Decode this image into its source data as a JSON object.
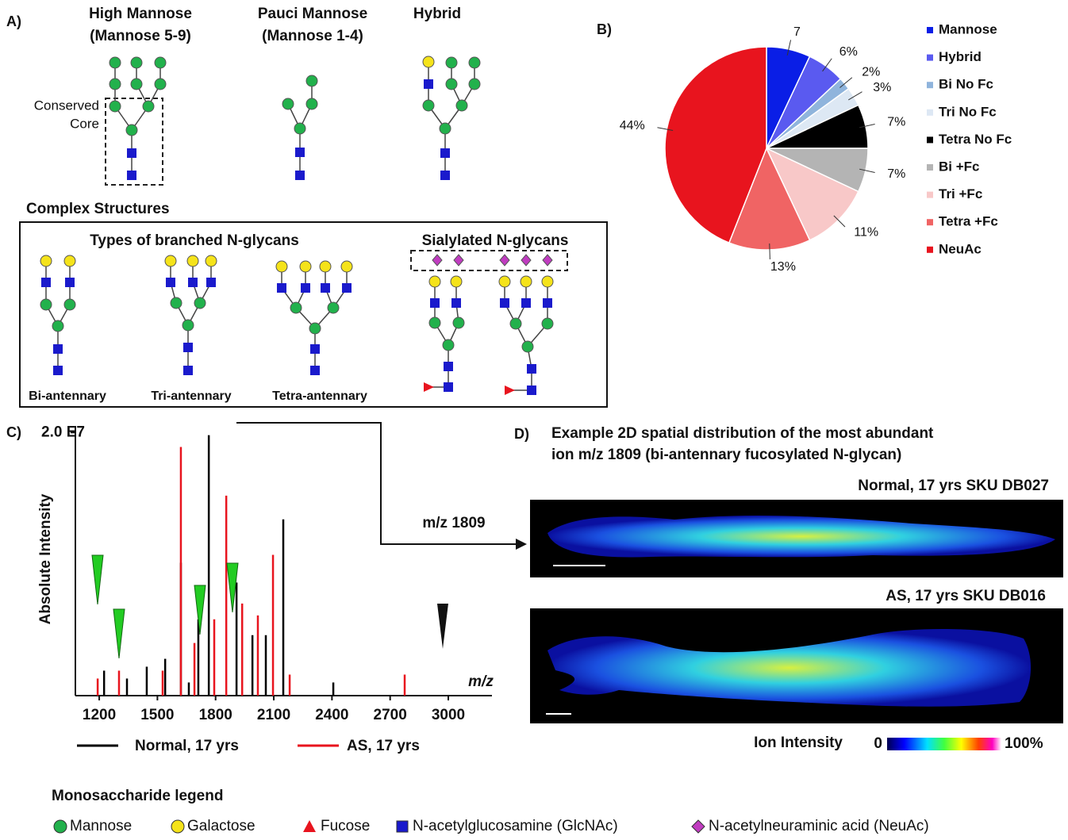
{
  "panel_labels": [
    "A)",
    "B)",
    "C)",
    "D)"
  ],
  "panel_a": {
    "headings": [
      "High Mannose",
      "(Mannose 5-9)",
      "Pauci Mannose",
      "(Mannose 1-4)",
      "Hybrid"
    ],
    "core_label": [
      "Conserved",
      "Core"
    ],
    "complex_title": "Complex Structures",
    "branched_title": "Types of branched N-glycans",
    "sialylated_title": "Sialylated N-glycans",
    "branch_labels": [
      "Bi-antennary",
      "Tri-antennary",
      "Tetra-antennary"
    ]
  },
  "chart_data": [
    {
      "type": "pie",
      "categories": [
        "Mannose",
        "Hybrid",
        "Bi No Fc",
        "Tri No Fc",
        "Tetra No Fc",
        "Bi +Fc",
        "Tri +Fc",
        "Tetra +Fc",
        "NeuAc"
      ],
      "values": [
        7,
        6,
        2,
        3,
        7,
        7,
        11,
        13,
        44
      ],
      "value_labels": [
        null,
        "6%",
        "2%",
        "3%",
        "7%",
        "7%",
        "11%",
        "13%",
        "44%"
      ],
      "colors": [
        "#0a1ee6",
        "#5a5af0",
        "#8fb4dc",
        "#dde8f4",
        "#000000",
        "#b4b4b4",
        "#f8c8c8",
        "#f06464",
        "#e8141e"
      ]
    },
    {
      "type": "spectrum",
      "x_label": "m/z",
      "y_label": "Absolute Intensity",
      "xlim": [
        1077,
        3225
      ],
      "xticks": [
        1200,
        1500,
        1800,
        2100,
        2400,
        2700,
        3000
      ],
      "ylim": [
        0,
        20500000
      ],
      "yticks": [
        {
          "value": 20000000,
          "label": "2.0 E7"
        }
      ],
      "series": [
        {
          "name": "Normal, 17 yrs",
          "color": "#000000",
          "x": [
            1225,
            1343,
            1445,
            1540,
            1621,
            1662,
            1711,
            1765,
            1908,
            1990,
            2059,
            2149,
            2407
          ],
          "values": [
            1900000,
            1300000,
            2200000,
            2800000,
            10100000,
            1000000,
            5800000,
            19800000,
            8600000,
            4600000,
            4600000,
            13400000,
            1000000
          ]
        },
        {
          "name": "AS, 17 yrs",
          "color": "#e8141e",
          "x": [
            1192,
            1302,
            1527,
            1621,
            1691,
            1793,
            1855,
            1937,
            2018,
            2096,
            2182,
            2775
          ],
          "values": [
            1300000,
            1900000,
            1900000,
            18900000,
            4000000,
            5800000,
            15200000,
            7000000,
            6100000,
            10700000,
            1600000,
            1600000
          ]
        }
      ]
    }
  ],
  "panel_c": {
    "arrow_label": "m/z 1809"
  },
  "panel_d": {
    "title_lines": [
      "Example 2D spatial distribution of the most abundant",
      "ion m/z 1809 (bi-antennary fucosylated N-glycan)"
    ],
    "images": [
      "Normal, 17 yrs SKU DB027",
      "AS, 17 yrs SKU DB016"
    ],
    "colorbar": {
      "title": "Ion Intensity",
      "min_label": "0",
      "max_label": "100%"
    }
  },
  "legend": {
    "title": "Monosaccharide legend",
    "items": [
      "Mannose",
      "Galactose",
      "Fucose",
      "N-acetylglucosamine (GlcNAc)",
      "N-acetylneuraminic acid (NeuAc)"
    ]
  }
}
